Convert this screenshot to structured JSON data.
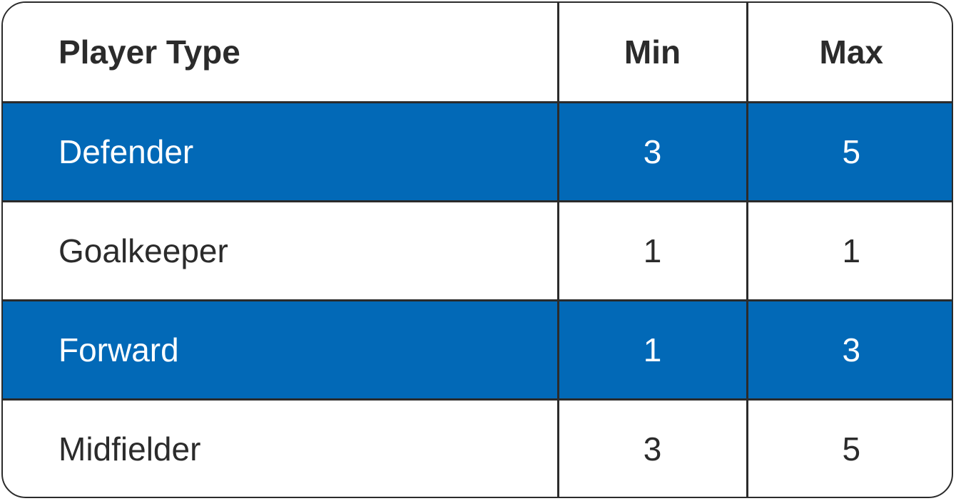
{
  "table": {
    "headers": [
      "Player Type",
      "Min",
      "Max"
    ],
    "rows": [
      {
        "type": "Defender",
        "min": "3",
        "max": "5"
      },
      {
        "type": "Goalkeeper",
        "min": "1",
        "max": "1"
      },
      {
        "type": "Forward",
        "min": "1",
        "max": "3"
      },
      {
        "type": "Midfielder",
        "min": "3",
        "max": "5"
      }
    ]
  },
  "colors": {
    "highlight_row": "#0269b7",
    "border": "#2b2b2b",
    "text": "#2b2b2b",
    "highlight_text": "#ffffff"
  }
}
